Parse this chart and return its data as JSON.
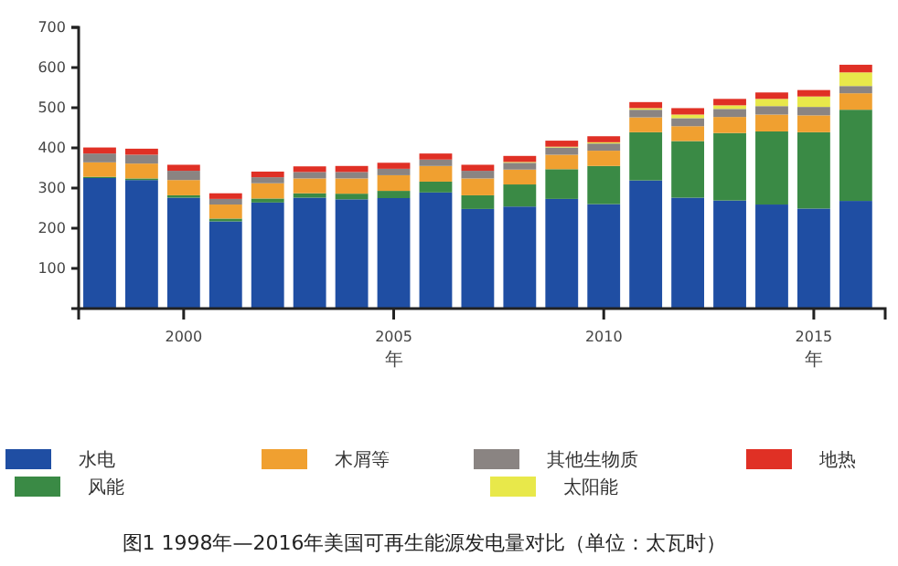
{
  "chart_data": {
    "type": "bar",
    "stacked": true,
    "title": "图1 1998年—2016年美国可再生能源发电量对比（单位：太瓦时）",
    "x": [
      1998,
      1999,
      2000,
      2001,
      2002,
      2003,
      2004,
      2005,
      2006,
      2007,
      2008,
      2009,
      2010,
      2011,
      2012,
      2013,
      2014,
      2015,
      2016
    ],
    "series": [
      {
        "name": "水电",
        "color": "#1f4ea3",
        "values": [
          325,
          320,
          276,
          217,
          264,
          276,
          272,
          275,
          289,
          248,
          254,
          273,
          260,
          319,
          276,
          269,
          259,
          249,
          268
        ]
      },
      {
        "name": "风能",
        "color": "#3a8a45",
        "values": [
          3,
          4,
          6,
          7,
          10,
          11,
          14,
          18,
          27,
          34,
          55,
          74,
          95,
          120,
          141,
          168,
          182,
          190,
          227
        ]
      },
      {
        "name": "木屑等",
        "color": "#f0a030",
        "values": [
          36,
          37,
          38,
          35,
          38,
          37,
          38,
          39,
          39,
          42,
          37,
          36,
          38,
          37,
          37,
          40,
          42,
          42,
          41
        ]
      },
      {
        "name": "其他生物质",
        "color": "#8a8482",
        "values": [
          22,
          22,
          23,
          14,
          15,
          16,
          16,
          16,
          16,
          19,
          17,
          18,
          18,
          19,
          20,
          20,
          21,
          21,
          18
        ]
      },
      {
        "name": "太阳能",
        "color": "#e8e84a",
        "values": [
          null,
          null,
          null,
          null,
          null,
          null,
          null,
          null,
          null,
          null,
          2,
          2,
          3,
          4,
          9,
          9,
          18,
          26,
          34
        ]
      },
      {
        "name": "地热",
        "color": "#e03025",
        "values": [
          15,
          15,
          15,
          14,
          14,
          14,
          15,
          15,
          15,
          15,
          15,
          15,
          15,
          15,
          16,
          16,
          16,
          16,
          19
        ]
      }
    ],
    "xlim": [
      1997.5,
      2016.7
    ],
    "xticks": [
      2000,
      2005,
      2010,
      2015
    ],
    "ylim": [
      0,
      700
    ],
    "yticks": [
      100,
      200,
      300,
      400,
      500,
      600,
      700
    ],
    "annotations": [
      "年",
      "年"
    ],
    "legend": "bottom",
    "grid": false
  }
}
